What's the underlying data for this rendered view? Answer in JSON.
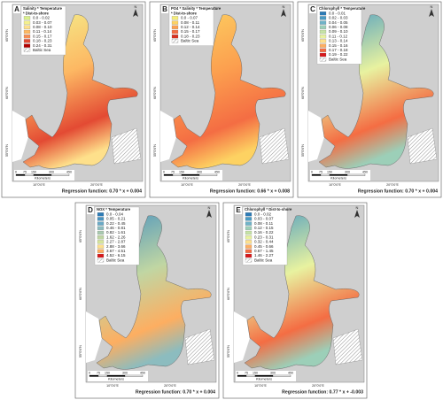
{
  "panels": [
    {
      "label": "A",
      "legend_title": [
        "Salinity * Temperature",
        "* Dist-to-shore"
      ],
      "legend": [
        {
          "range": "0.0 - 0.02",
          "color": "#d9ef8b"
        },
        {
          "range": "0.03 - 0.07",
          "color": "#f4f08c"
        },
        {
          "range": "0.08 - 0.10",
          "color": "#fee08b"
        },
        {
          "range": "0.11 - 0.14",
          "color": "#fdb863"
        },
        {
          "range": "0.15 - 0.17",
          "color": "#f88d52"
        },
        {
          "range": "0.18 - 0.23",
          "color": "#e34a33"
        },
        {
          "range": "0.24 - 0.31",
          "color": "#b30000"
        }
      ],
      "baltic_sea": "Baltic Sea",
      "scale": [
        "0",
        "75",
        "150",
        "300",
        "450"
      ],
      "scale_unit": "Kilometers",
      "north": "N",
      "lat_labels": [
        "65°0'0\"N",
        "60°0'0\"N",
        "55°0'0\"N"
      ],
      "lon_labels": [
        "10°0'0\"E",
        "20°0'0\"E"
      ],
      "regression": "Regression function: 0.70 * x + 0.004"
    },
    {
      "label": "B",
      "legend_title": [
        "PO4 * Salinity * Temperature",
        "* Dist-to-shore"
      ],
      "legend": [
        {
          "range": "0.0 - 0.07",
          "color": "#f4ec7a"
        },
        {
          "range": "0.08 - 0.11",
          "color": "#fdd262"
        },
        {
          "range": "0.12 - 0.14",
          "color": "#fca04f"
        },
        {
          "range": "0.15 - 0.17",
          "color": "#f46d43"
        },
        {
          "range": "0.18 - 0.23",
          "color": "#d7301f"
        }
      ],
      "baltic_sea": "Baltic Sea",
      "scale": [
        "0",
        "75",
        "150",
        "300",
        "450"
      ],
      "scale_unit": "Kilometers",
      "north": "N",
      "lat_labels": [
        "65°0'0\"N",
        "60°0'0\"N",
        "55°0'0\"N"
      ],
      "lon_labels": [
        "10°0'0\"E",
        "20°0'0\"E"
      ],
      "regression": "Regression function: 0.66 * x + 0.008"
    },
    {
      "label": "C",
      "legend_title": [
        "Chlorophyll * Temperature"
      ],
      "legend": [
        {
          "range": "0.0 - 0.01",
          "color": "#2c7bb6"
        },
        {
          "range": "0.02 - 0.03",
          "color": "#4a9bc4"
        },
        {
          "range": "0.04 - 0.05",
          "color": "#6fb3c8"
        },
        {
          "range": "0.06 - 0.08",
          "color": "#9ccfb8"
        },
        {
          "range": "0.09 - 0.10",
          "color": "#c6e3a6"
        },
        {
          "range": "0.11 - 0.12",
          "color": "#e8f2a0"
        },
        {
          "range": "0.13 - 0.14",
          "color": "#fee08b"
        },
        {
          "range": "0.15 - 0.16",
          "color": "#fdae61"
        },
        {
          "range": "0.17 - 0.18",
          "color": "#f46d43"
        },
        {
          "range": "0.19 - 0.22",
          "color": "#d7191c"
        }
      ],
      "baltic_sea": "Baltic Sea",
      "scale": [
        "0",
        "75",
        "150",
        "300",
        "450"
      ],
      "scale_unit": "Kilometers",
      "north": "N",
      "lat_labels": [
        "65°0'0\"N",
        "60°0'0\"N",
        "55°0'0\"N"
      ],
      "lon_labels": [
        "10°0'0\"E",
        "20°0'0\"E"
      ],
      "regression": "Regression function: 0.70 * x + 0.004"
    },
    {
      "label": "D",
      "legend_title": [
        "NOX * Temperature"
      ],
      "legend": [
        {
          "range": "0.0 - 0.04",
          "color": "#2c7bb6"
        },
        {
          "range": "0.05 - 0.21",
          "color": "#4a93c0"
        },
        {
          "range": "0.22 - 0.45",
          "color": "#6aa9c6"
        },
        {
          "range": "0.46 - 0.81",
          "color": "#8cbcbf"
        },
        {
          "range": "0.82 - 1.61",
          "color": "#a9c9b0"
        },
        {
          "range": "1.62 - 2.26",
          "color": "#c0d6a3"
        },
        {
          "range": "2.27 - 2.87",
          "color": "#d5e49a"
        },
        {
          "range": "2.88 - 3.66",
          "color": "#fee08b"
        },
        {
          "range": "3.67 - 4.51",
          "color": "#fdae61"
        },
        {
          "range": "4.52 - 6.15",
          "color": "#d7191c"
        }
      ],
      "baltic_sea": "Baltic Sea",
      "scale": [
        "0",
        "75",
        "150",
        "300",
        "450"
      ],
      "scale_unit": "Kilometers",
      "north": "N",
      "lat_labels": [
        "65°0'0\"N",
        "60°0'0\"N",
        "55°0'0\"N"
      ],
      "lon_labels": [
        "10°0'0\"E",
        "20°0'0\"E"
      ],
      "regression": "Regression function: 0.70 * x + 0.004"
    },
    {
      "label": "E",
      "legend_title": [
        "Chlorophyll * Dist-to-shore"
      ],
      "legend": [
        {
          "range": "0.0 - 0.02",
          "color": "#2c7bb6"
        },
        {
          "range": "0.03 - 0.07",
          "color": "#4a9bc4"
        },
        {
          "range": "0.08 - 0.11",
          "color": "#6fb3c8"
        },
        {
          "range": "0.12 - 0.15",
          "color": "#9ccfb8"
        },
        {
          "range": "0.16 - 0.22",
          "color": "#c6e3a6"
        },
        {
          "range": "0.23 - 0.31",
          "color": "#e8f2a0"
        },
        {
          "range": "0.32 - 0.44",
          "color": "#fee08b"
        },
        {
          "range": "0.45 - 0.66",
          "color": "#fdae61"
        },
        {
          "range": "0.67 - 1.45",
          "color": "#f46d43"
        },
        {
          "range": "1.46 - 2.27",
          "color": "#d7191c"
        }
      ],
      "baltic_sea": "Baltic Sea",
      "scale": [
        "0",
        "75",
        "150",
        "300",
        "450"
      ],
      "scale_unit": "Kilometers",
      "north": "N",
      "lat_labels": [
        "65°0'0\"N",
        "60°0'0\"N",
        "55°0'0\"N"
      ],
      "lon_labels": [
        "10°0'0\"E",
        "20°0'0\"E"
      ],
      "regression": "Regression function: 0.77 * x + -0.003"
    }
  ]
}
